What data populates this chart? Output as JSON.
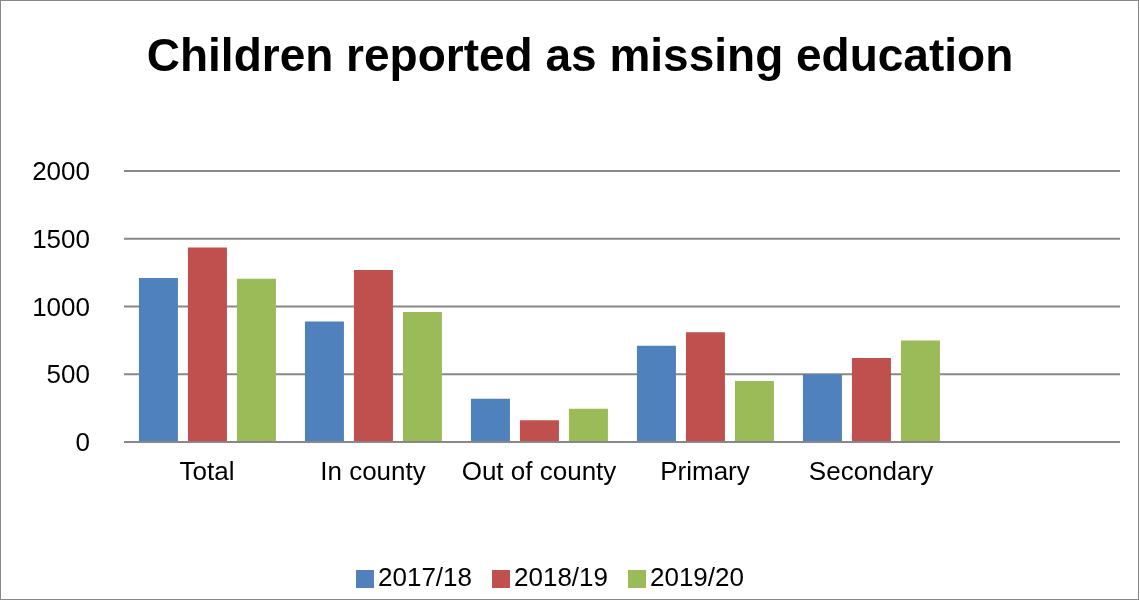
{
  "chart_data": {
    "type": "bar",
    "title": "Children reported as missing education",
    "categories": [
      "Total",
      "In county",
      "Out of county",
      "Primary",
      "Secondary",
      null
    ],
    "series": [
      {
        "name": "2017/18",
        "color": "#4f81bd",
        "values": [
          1210,
          890,
          320,
          710,
          500,
          null
        ]
      },
      {
        "name": "2018/19",
        "color": "#c0504d",
        "values": [
          1435,
          1270,
          160,
          810,
          620,
          null
        ]
      },
      {
        "name": "2019/20",
        "color": "#9bbb59",
        "values": [
          1205,
          960,
          245,
          450,
          750,
          null
        ]
      }
    ],
    "ylim": [
      0,
      2000
    ],
    "yticks": [
      0,
      500,
      1000,
      1500,
      2000
    ],
    "grid": "y",
    "legend": "bottom"
  }
}
